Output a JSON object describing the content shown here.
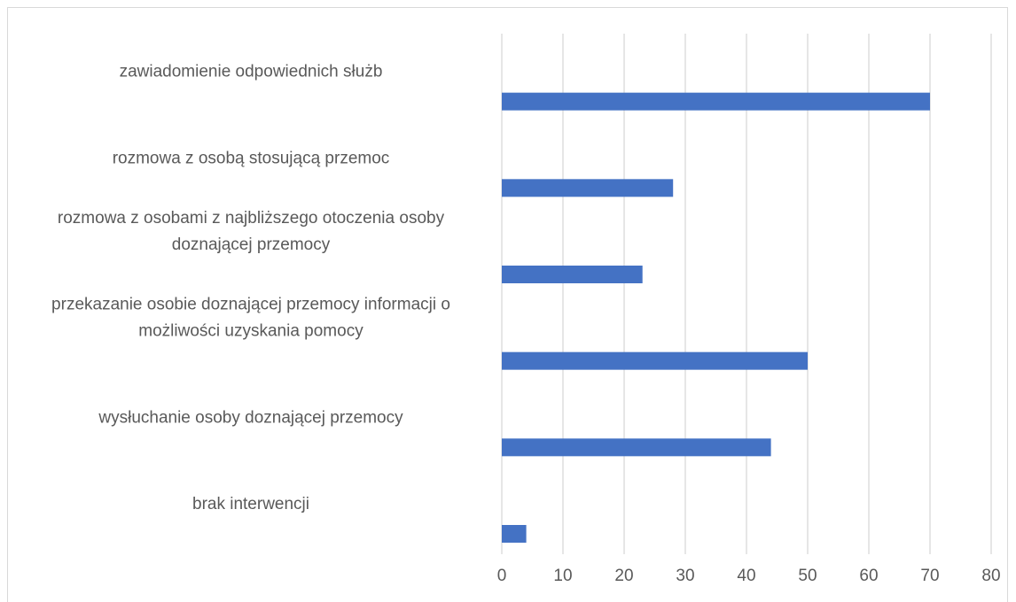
{
  "chart_data": {
    "type": "bar",
    "orientation": "horizontal",
    "title": "",
    "xlabel": "",
    "ylabel": "",
    "xlim": [
      0,
      80
    ],
    "x_ticks": [
      "0",
      "10",
      "20",
      "30",
      "40",
      "50",
      "60",
      "70",
      "80"
    ],
    "grid": "vertical",
    "legend": "none",
    "categories": [
      [
        "zawiadomienie odpowiednich służb"
      ],
      [
        "rozmowa z osobą stosującą przemoc"
      ],
      [
        "rozmowa z osobami z najbliższego otoczenia osoby",
        "doznającej przemocy"
      ],
      [
        "przekazanie osobie doznającej przemocy informacji o",
        "możliwości uzyskania pomocy"
      ],
      [
        "wysłuchanie osoby doznającej przemocy"
      ],
      [
        "brak interwencji"
      ]
    ],
    "values": [
      70,
      28,
      23,
      50,
      44,
      4
    ],
    "bar_color": "#4472C4",
    "grid_color": "#d9d9d9"
  }
}
